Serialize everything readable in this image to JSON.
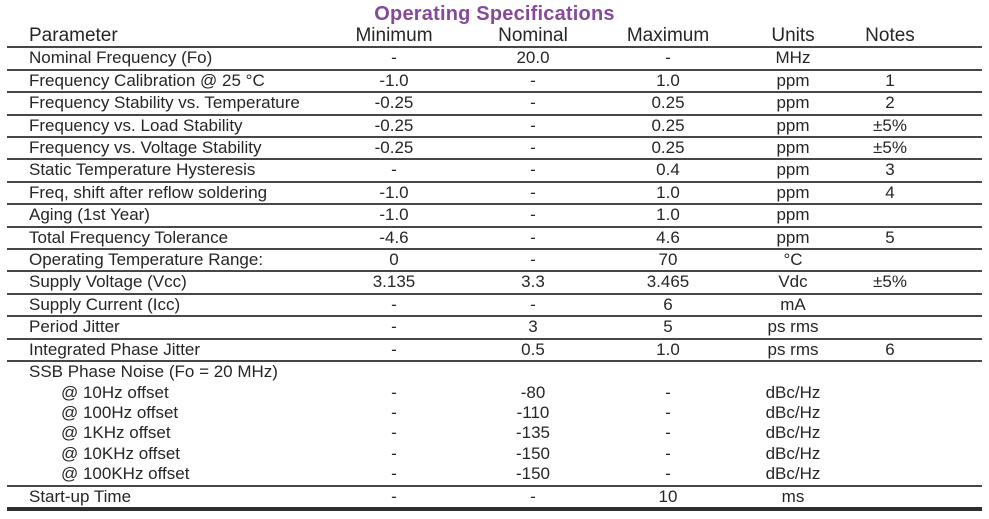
{
  "title": "Operating Specifications",
  "accent_color": "#864A9A",
  "columns": [
    "Parameter",
    "Minimum",
    "Nominal",
    "Maximum",
    "Units",
    "Notes"
  ],
  "cell_keys": [
    "parameter",
    "minimum",
    "nominal",
    "maximum",
    "units",
    "notes"
  ],
  "rows": [
    {
      "parameter": "Nominal Frequency (Fo)",
      "minimum": "-",
      "nominal": "20.0",
      "maximum": "-",
      "units": "MHz",
      "notes": "",
      "indent": false,
      "separator": true
    },
    {
      "parameter": "Frequency Calibration @ 25 °C",
      "minimum": "-1.0",
      "nominal": "-",
      "maximum": "1.0",
      "units": "ppm",
      "notes": "1",
      "indent": false,
      "separator": true
    },
    {
      "parameter": "Frequency Stability vs. Temperature",
      "minimum": "-0.25",
      "nominal": "-",
      "maximum": "0.25",
      "units": "ppm",
      "notes": "2",
      "indent": false,
      "separator": true
    },
    {
      "parameter": "Frequency vs. Load Stability",
      "minimum": "-0.25",
      "nominal": "-",
      "maximum": "0.25",
      "units": "ppm",
      "notes": "±5%",
      "indent": false,
      "separator": true
    },
    {
      "parameter": "Frequency vs. Voltage Stability",
      "minimum": "-0.25",
      "nominal": "-",
      "maximum": "0.25",
      "units": "ppm",
      "notes": "±5%",
      "indent": false,
      "separator": true
    },
    {
      "parameter": "Static Temperature Hysteresis",
      "minimum": "-",
      "nominal": "-",
      "maximum": "0.4",
      "units": "ppm",
      "notes": "3",
      "indent": false,
      "separator": true
    },
    {
      "parameter": "Freq, shift after reflow soldering",
      "minimum": "-1.0",
      "nominal": "-",
      "maximum": "1.0",
      "units": "ppm",
      "notes": "4",
      "indent": false,
      "separator": true
    },
    {
      "parameter": "Aging (1st Year)",
      "minimum": "-1.0",
      "nominal": "-",
      "maximum": "1.0",
      "units": "ppm",
      "notes": "",
      "indent": false,
      "separator": true
    },
    {
      "parameter": "Total Frequency Tolerance",
      "minimum": "-4.6",
      "nominal": "-",
      "maximum": "4.6",
      "units": "ppm",
      "notes": "5",
      "indent": false,
      "separator": true
    },
    {
      "parameter": "Operating Temperature Range:",
      "minimum": "0",
      "nominal": "-",
      "maximum": "70",
      "units": "°C",
      "notes": "",
      "indent": false,
      "separator": true
    },
    {
      "parameter": "Supply Voltage (Vcc)",
      "minimum": "3.135",
      "nominal": "3.3",
      "maximum": "3.465",
      "units": "Vdc",
      "notes": "±5%",
      "indent": false,
      "separator": true
    },
    {
      "parameter": "Supply Current (Icc)",
      "minimum": "-",
      "nominal": "-",
      "maximum": "6",
      "units": "mA",
      "notes": "",
      "indent": false,
      "separator": true
    },
    {
      "parameter": "Period Jitter",
      "minimum": "-",
      "nominal": "3",
      "maximum": "5",
      "units": "ps rms",
      "notes": "",
      "indent": false,
      "separator": true
    },
    {
      "parameter": "Integrated Phase Jitter",
      "minimum": "-",
      "nominal": "0.5",
      "maximum": "1.0",
      "units": "ps rms",
      "notes": "6",
      "indent": false,
      "separator": true
    },
    {
      "parameter": "SSB Phase Noise (Fo = 20 MHz)",
      "minimum": "",
      "nominal": "",
      "maximum": "",
      "units": "",
      "notes": "",
      "indent": false,
      "separator": false
    },
    {
      "parameter": "@ 10Hz offset",
      "minimum": "-",
      "nominal": "-80",
      "maximum": "-",
      "units": "dBc/Hz",
      "notes": "",
      "indent": true,
      "separator": false
    },
    {
      "parameter": "@ 100Hz offset",
      "minimum": "-",
      "nominal": "-110",
      "maximum": "-",
      "units": "dBc/Hz",
      "notes": "",
      "indent": true,
      "separator": false
    },
    {
      "parameter": "@ 1KHz offset",
      "minimum": "-",
      "nominal": "-135",
      "maximum": "-",
      "units": "dBc/Hz",
      "notes": "",
      "indent": true,
      "separator": false
    },
    {
      "parameter": "@ 10KHz offset",
      "minimum": "-",
      "nominal": "-150",
      "maximum": "-",
      "units": "dBc/Hz",
      "notes": "",
      "indent": true,
      "separator": false
    },
    {
      "parameter": "@ 100KHz offset",
      "minimum": "-",
      "nominal": "-150",
      "maximum": "-",
      "units": "dBc/Hz",
      "notes": "",
      "indent": true,
      "separator": true
    },
    {
      "parameter": "Start-up Time",
      "minimum": "-",
      "nominal": "-",
      "maximum": "10",
      "units": "ms",
      "notes": "",
      "indent": false,
      "separator": false
    }
  ]
}
